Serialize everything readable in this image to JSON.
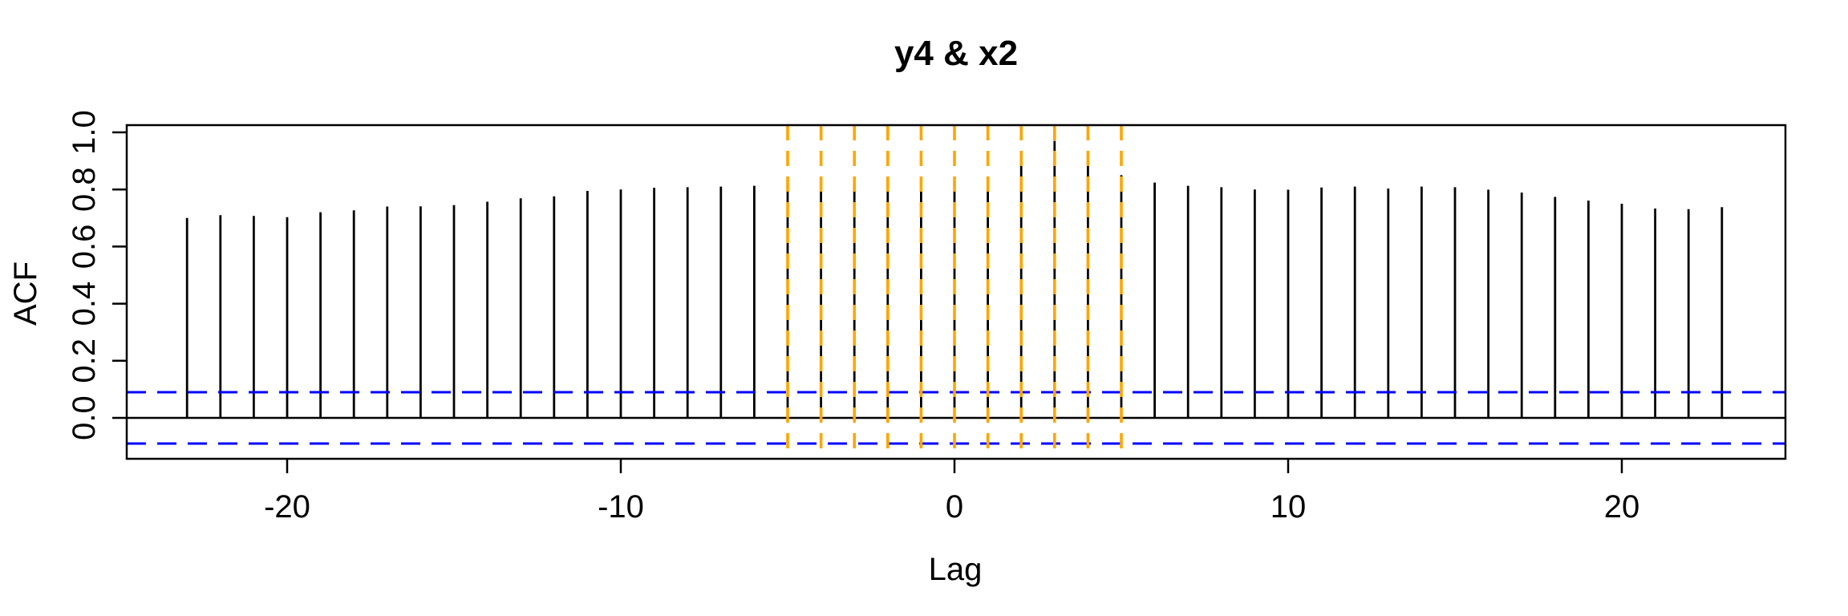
{
  "chart_data": {
    "type": "bar",
    "subtype": "ccf-spike-plot",
    "title": "y4 & x2",
    "xlabel": "Lag",
    "ylabel": "ACF",
    "lags": [
      -23,
      -22,
      -21,
      -20,
      -19,
      -18,
      -17,
      -16,
      -15,
      -14,
      -13,
      -12,
      -11,
      -10,
      -9,
      -8,
      -7,
      -6,
      -5,
      -4,
      -3,
      -2,
      -1,
      0,
      1,
      2,
      3,
      4,
      5,
      6,
      7,
      8,
      9,
      10,
      11,
      12,
      13,
      14,
      15,
      16,
      17,
      18,
      19,
      20,
      21,
      22,
      23
    ],
    "values": [
      0.7,
      0.71,
      0.707,
      0.703,
      0.72,
      0.727,
      0.74,
      0.741,
      0.745,
      0.757,
      0.769,
      0.776,
      0.795,
      0.8,
      0.806,
      0.808,
      0.81,
      0.813,
      0.812,
      0.815,
      0.818,
      0.82,
      0.822,
      0.825,
      0.84,
      0.89,
      0.97,
      0.898,
      0.85,
      0.824,
      0.813,
      0.808,
      0.8,
      0.799,
      0.807,
      0.81,
      0.803,
      0.81,
      0.808,
      0.799,
      0.789,
      0.774,
      0.761,
      0.75,
      0.733,
      0.731,
      0.738
    ],
    "x_ticks": [
      {
        "label": "-20",
        "value": -20
      },
      {
        "label": "-10",
        "value": -10
      },
      {
        "label": "0",
        "value": 0
      },
      {
        "label": "10",
        "value": 10
      },
      {
        "label": "20",
        "value": 20
      }
    ],
    "y_ticks": [
      {
        "label": "1.0",
        "value": 1.0
      },
      {
        "label": "0.8",
        "value": 0.8
      },
      {
        "label": "0.6",
        "value": 0.6
      },
      {
        "label": "0.4",
        "value": 0.4
      },
      {
        "label": "0.2",
        "value": 0.2
      },
      {
        "label": "0.0",
        "value": 0.0
      }
    ],
    "ci_bounds": [
      0.09,
      -0.09
    ],
    "orange_lags": [
      -5,
      -4,
      -3,
      -2,
      -1,
      0,
      1,
      2,
      3,
      4,
      5
    ],
    "xlim": [
      -24.8,
      24.9
    ],
    "ylim": [
      -0.143,
      1.025
    ],
    "zero_line": 0,
    "grid": false,
    "legend": null
  },
  "colors": {
    "spike": "#000000",
    "frame": "#000000",
    "zero_line": "#000000",
    "ci_line": "#0000FF",
    "lag_marker_line": "#FFA500",
    "background": "#FFFFFF"
  }
}
